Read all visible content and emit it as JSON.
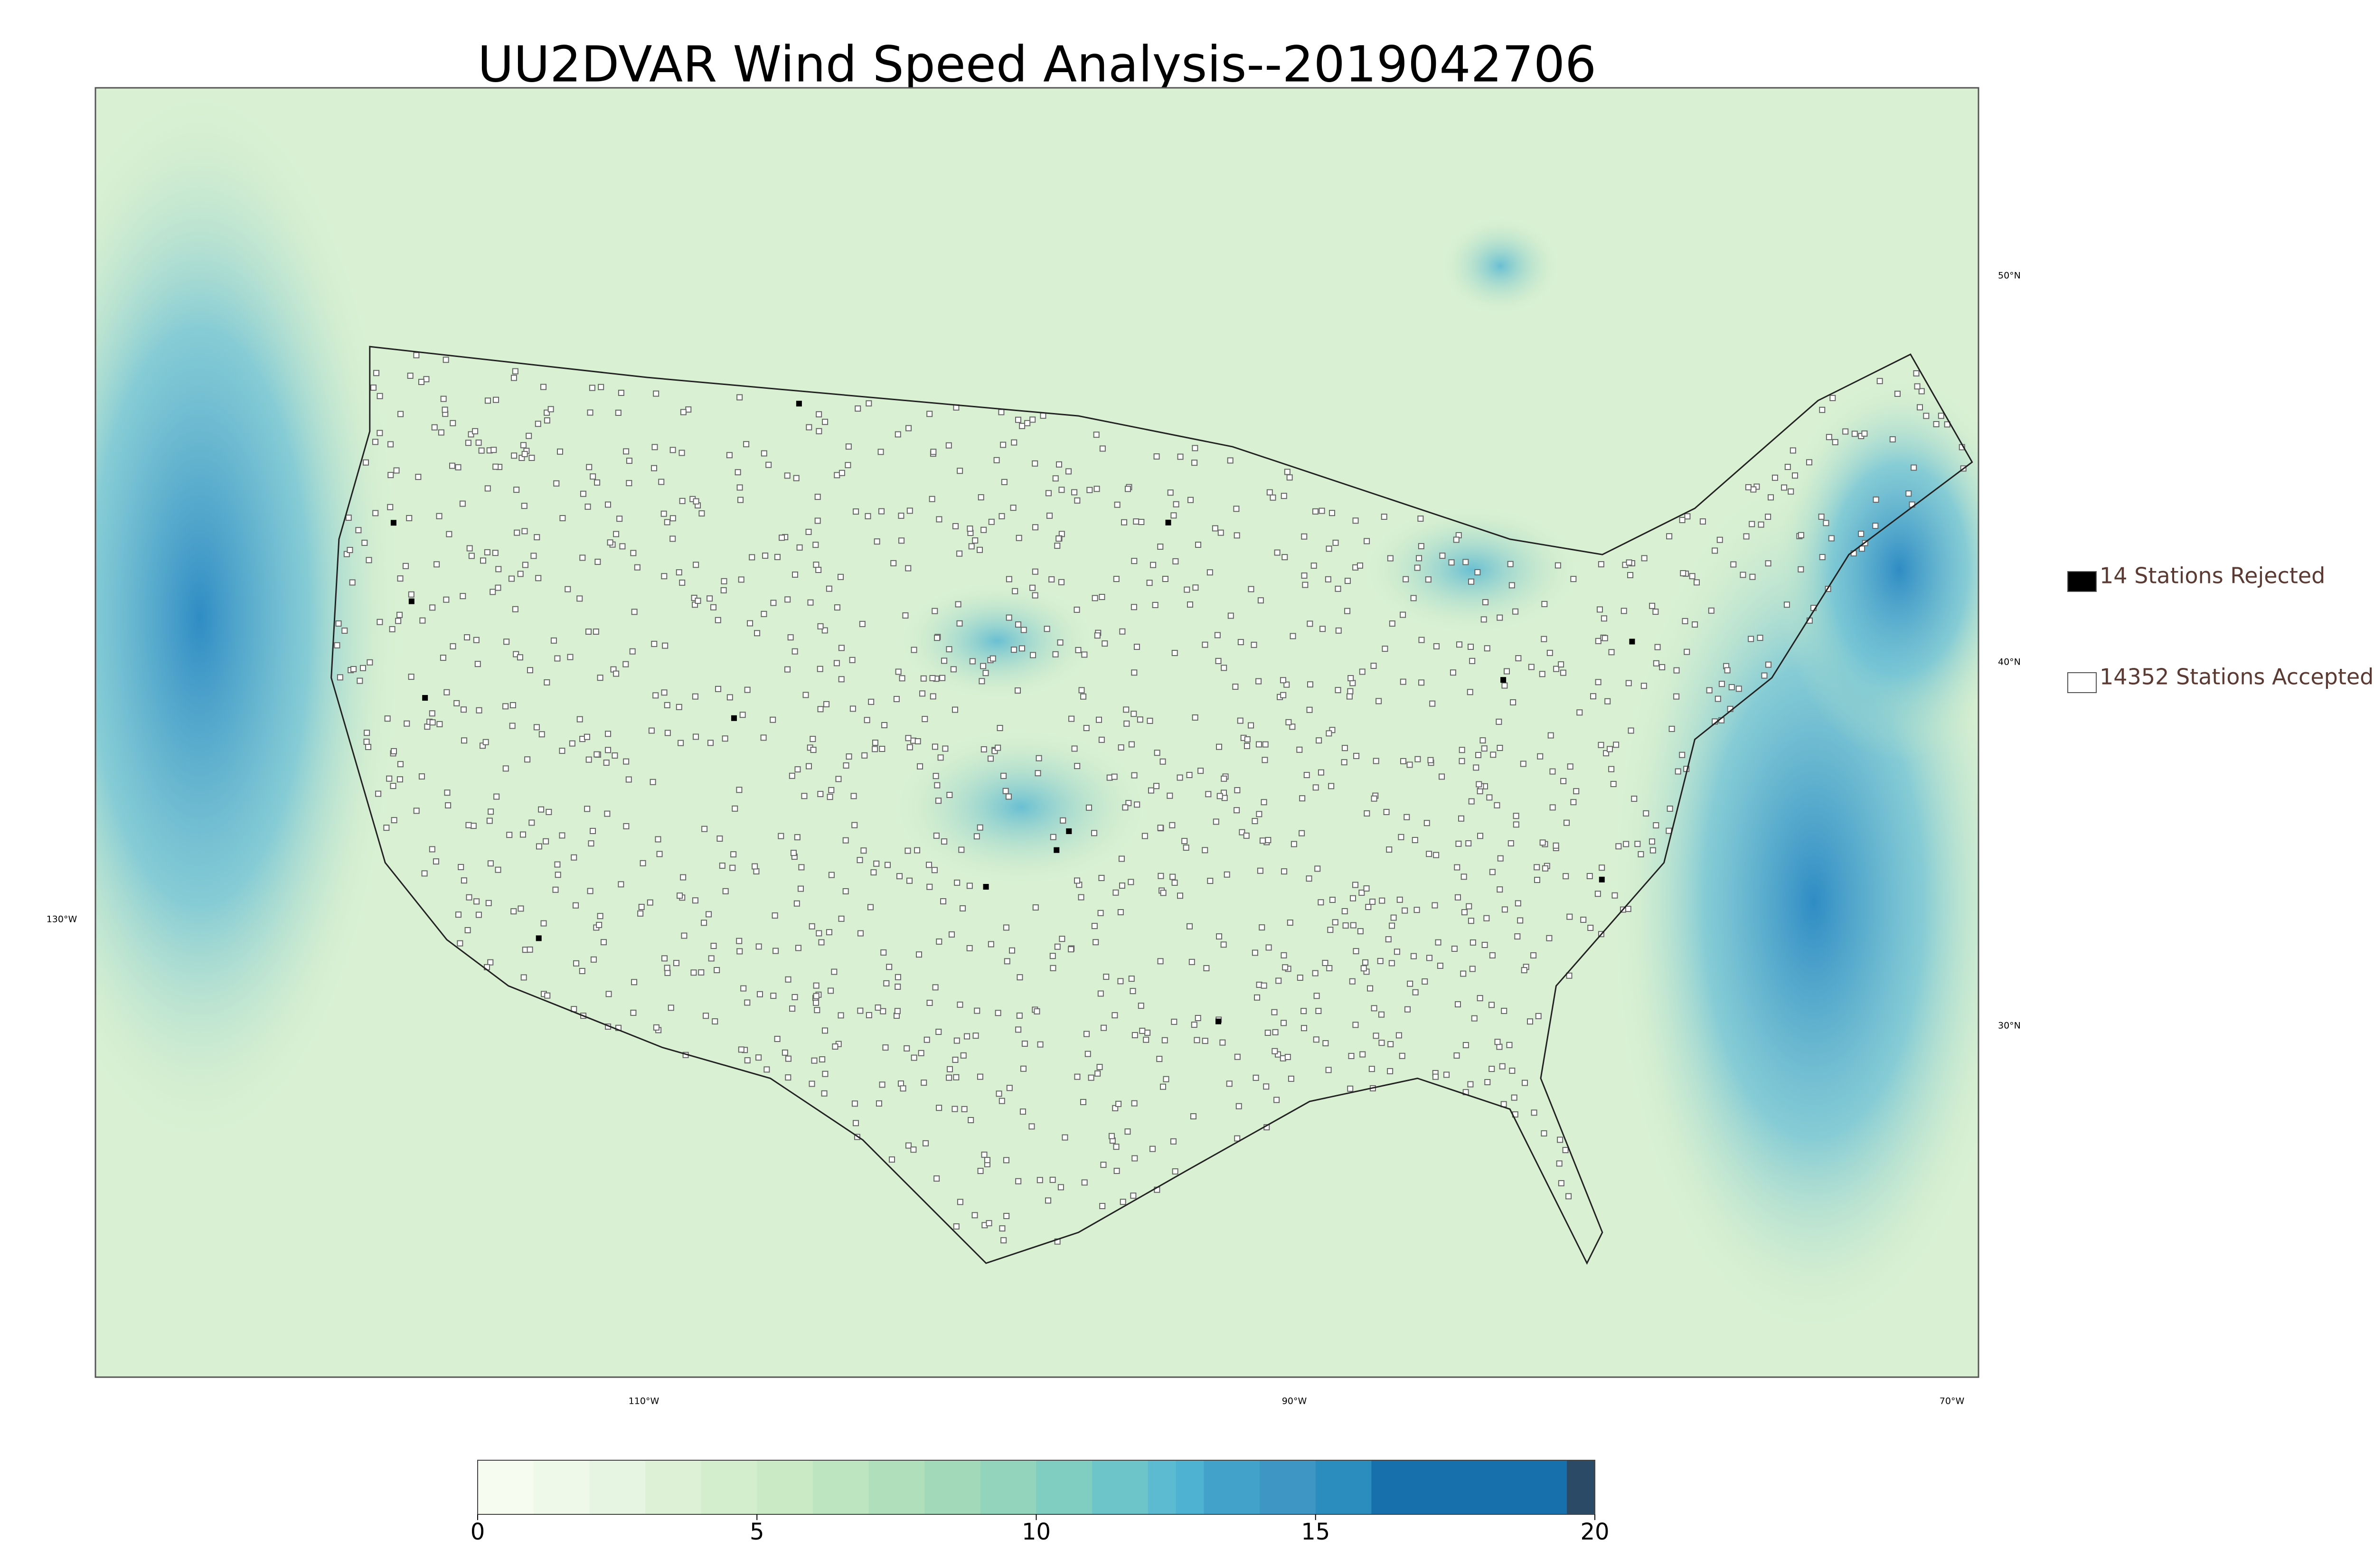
{
  "title": "UU2DVAR Wind Speed Analysis--2019042706",
  "map": {
    "lon_labels": [
      "110°W",
      "90°W",
      "70°W"
    ],
    "lat_labels": [
      "50°N",
      "40°N",
      "30°N"
    ],
    "left_label": "130°W"
  },
  "legend": {
    "items": [
      {
        "label": "14 Stations Rejected",
        "color": "#000000"
      },
      {
        "label": "14352 Stations Accepted",
        "color": "#ffffff"
      }
    ]
  },
  "colorbar": {
    "lim": [
      0,
      20
    ],
    "ticks": [
      0,
      5,
      10,
      15,
      20
    ],
    "bounds": [
      0,
      1,
      2,
      3,
      4,
      5,
      6,
      7,
      8,
      9,
      10,
      11,
      12,
      12.5,
      13,
      14,
      15,
      16,
      19.5,
      20
    ],
    "colors": [
      "#f7fcf0",
      "#eef9e9",
      "#e6f5e1",
      "#dcf1d6",
      "#d3eecd",
      "#c9eac4",
      "#bde5bf",
      "#b0e0bb",
      "#a2dab9",
      "#92d4bc",
      "#80cdc1",
      "#6ec5c9",
      "#5cbad1",
      "#4eb3d3",
      "#43a2ca",
      "#3d96c4",
      "#2b8cbe",
      "#1770ab",
      "#2a4a66"
    ]
  }
}
